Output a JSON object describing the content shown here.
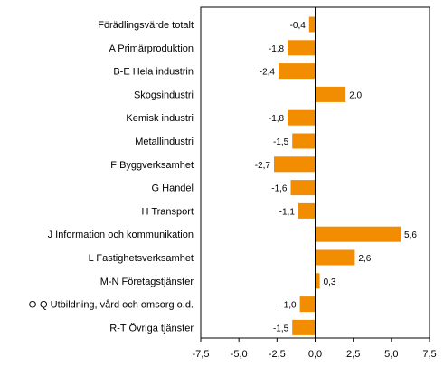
{
  "chart_data": {
    "type": "bar",
    "orientation": "horizontal",
    "categories": [
      "Förädlingsvärde totalt",
      "A Primärproduktion",
      "B-E Hela industrin",
      "Skogsindustri",
      "Kemisk industri",
      "Metallindustri",
      "F Byggverksamhet",
      "G Handel",
      "H Transport",
      "J Information och kommunikation",
      "L Fastighetsverksamhet",
      "M-N Företagstjänster",
      "O-Q Utbildning, vård och omsorg o.d.",
      "R-T Övriga tjänster"
    ],
    "values": [
      -0.4,
      -1.8,
      -2.4,
      2.0,
      -1.8,
      -1.5,
      -2.7,
      -1.6,
      -1.1,
      5.6,
      2.6,
      0.3,
      -1.0,
      -1.5
    ],
    "value_labels": [
      "-0,4",
      "-1,8",
      "-2,4",
      "2,0",
      "-1,8",
      "-1,5",
      "-2,7",
      "-1,6",
      "-1,1",
      "5,6",
      "2,6",
      "0,3",
      "-1,0",
      "-1,5"
    ],
    "title": "",
    "xlabel": "",
    "ylabel": "",
    "xlim": [
      -7.5,
      7.5
    ],
    "xticks": [
      -7.5,
      -5.0,
      -2.5,
      0.0,
      2.5,
      5.0,
      7.5
    ],
    "xtick_labels": [
      "-7,5",
      "-5,0",
      "-2,5",
      "0,0",
      "2,5",
      "5,0",
      "7,5"
    ],
    "grid": false,
    "legend": "none",
    "bar_color": "#f28c00",
    "axis_color": "#000000"
  }
}
